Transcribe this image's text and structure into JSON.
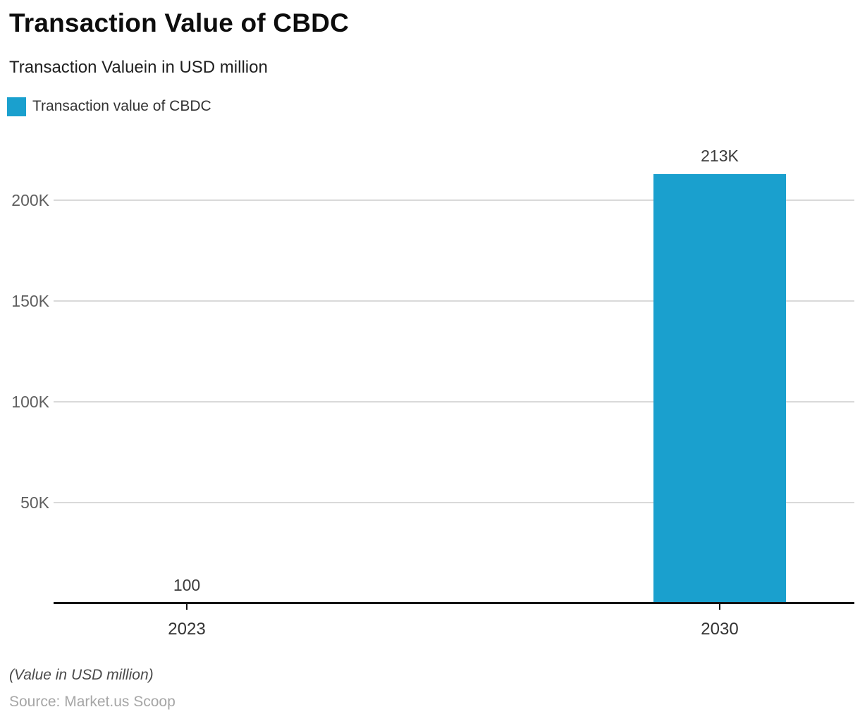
{
  "chart": {
    "title": "Transaction Value of CBDC",
    "subtitle": "Transaction Valuein in USD million",
    "legend": {
      "label": "Transaction value of CBDC",
      "swatch_color": "#1AA0CE"
    },
    "footer_note": "(Value in USD million)",
    "source": "Source: Market.us Scoop"
  },
  "chart_data": {
    "type": "bar",
    "title": "Transaction Value of CBDC",
    "subtitle": "Transaction Valuein in USD million",
    "series_name": "Transaction value of CBDC",
    "categories": [
      "2023",
      "2030"
    ],
    "values": [
      100,
      213000
    ],
    "value_labels": [
      "100",
      "213K"
    ],
    "xlabel": "",
    "ylabel": "",
    "ytick_labels": [
      "50K",
      "100K",
      "150K",
      "200K"
    ],
    "ytick_values": [
      50000,
      100000,
      150000,
      200000
    ],
    "ylim": [
      0,
      220000
    ],
    "grid": true,
    "legend_position": "top-left",
    "bar_color": "#1AA0CE",
    "axis_color": "#141414",
    "gridline_color": "#d9d9d9"
  }
}
